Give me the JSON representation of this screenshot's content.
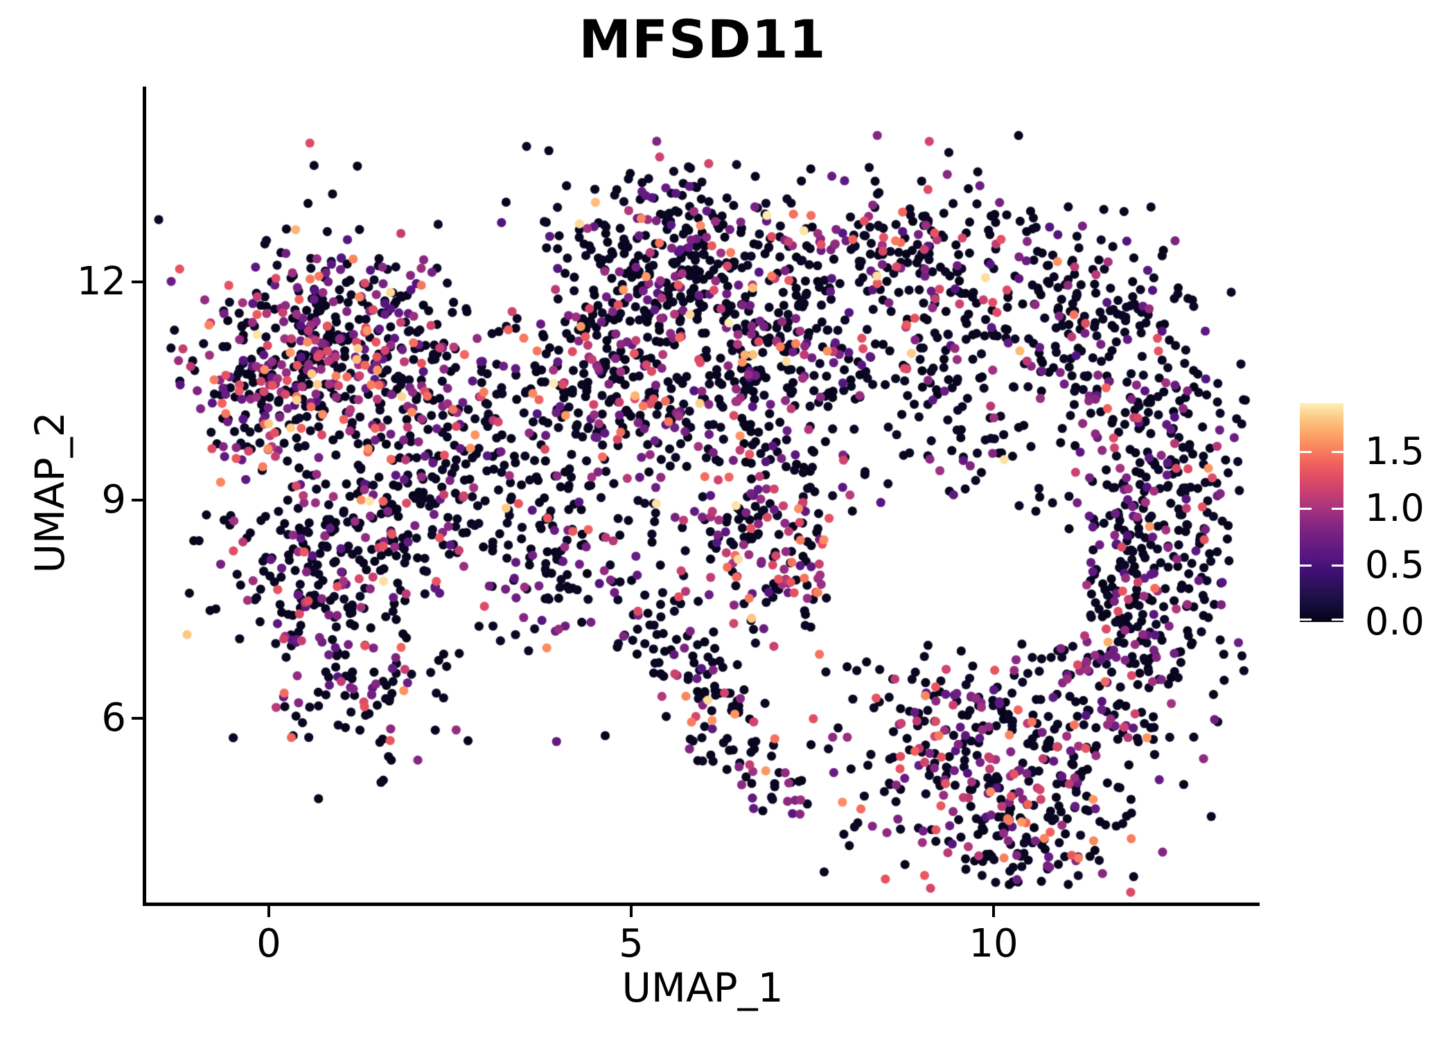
{
  "figure": {
    "title": "MFSD11"
  },
  "chart_data": {
    "type": "scatter",
    "title": "MFSD11",
    "xlabel": "UMAP_1",
    "ylabel": "UMAP_2",
    "xlim": [
      -1.7,
      13.67
    ],
    "ylim": [
      3.45,
      14.78
    ],
    "grid": false,
    "x_ticks": [
      {
        "value": 0,
        "label": "0"
      },
      {
        "value": 5,
        "label": "5"
      },
      {
        "value": 10,
        "label": "10"
      }
    ],
    "y_ticks": [
      {
        "value": 6,
        "label": "6"
      },
      {
        "value": 9,
        "label": "9"
      },
      {
        "value": 12,
        "label": "12"
      }
    ],
    "colorbar": {
      "position": "right",
      "vmin": 0.0,
      "vmax": 1.93,
      "ticks": [
        {
          "value": 0.0,
          "label": "0.0"
        },
        {
          "value": 0.5,
          "label": "0.5"
        },
        {
          "value": 1.0,
          "label": "1.0"
        },
        {
          "value": 1.5,
          "label": "1.5"
        }
      ]
    },
    "colormap": {
      "name": "magma",
      "stops": [
        [
          0.0,
          "#050417"
        ],
        [
          0.08,
          "#140e3a"
        ],
        [
          0.16,
          "#2c1158"
        ],
        [
          0.24,
          "#431078"
        ],
        [
          0.3,
          "#571680"
        ],
        [
          0.38,
          "#6f1f81"
        ],
        [
          0.46,
          "#8b2981"
        ],
        [
          0.52,
          "#a53480"
        ],
        [
          0.56,
          "#b93a76"
        ],
        [
          0.62,
          "#d2456c"
        ],
        [
          0.68,
          "#e65261"
        ],
        [
          0.74,
          "#f4685d"
        ],
        [
          0.8,
          "#fa8660"
        ],
        [
          0.86,
          "#fda568"
        ],
        [
          0.92,
          "#fdc27b"
        ],
        [
          1.0,
          "#fdf0b8"
        ]
      ]
    },
    "points": {
      "n": 3840,
      "radius_px": 6.6,
      "seed": 7,
      "expression_levels": {
        "zero": [
          0.0,
          0.035
        ],
        "low": [
          0.28,
          0.52
        ],
        "mid": [
          0.54,
          0.7
        ],
        "high": [
          0.72,
          0.84
        ],
        "max": [
          0.88,
          1.0
        ]
      },
      "category_mixes": {
        "left": [
          0.56,
          0.28,
          0.11,
          0.04,
          0.01
        ],
        "default": [
          0.7,
          0.19,
          0.07,
          0.03,
          0.01
        ],
        "pink": [
          0.55,
          0.2,
          0.17,
          0.06,
          0.02
        ],
        "right": [
          0.745,
          0.185,
          0.05,
          0.015,
          0.005
        ],
        "br": [
          0.63,
          0.23,
          0.1,
          0.03,
          0.01
        ],
        "sparse": [
          0.8,
          0.14,
          0.04,
          0.015,
          0.005
        ]
      },
      "clusters": [
        {
          "name": "left-main",
          "cx": 0.88,
          "cy": 11.1,
          "sx": 0.82,
          "sy": 0.82,
          "n": 420,
          "mix": "left"
        },
        {
          "name": "left-west-edge",
          "cx": -0.18,
          "cy": 10.5,
          "sx": 0.45,
          "sy": 0.7,
          "n": 110,
          "mix": "left"
        },
        {
          "name": "left-lower-lobe",
          "cx": 0.75,
          "cy": 7.95,
          "sx": 0.78,
          "sy": 0.72,
          "n": 215,
          "mix": "default"
        },
        {
          "name": "left-bottom-tail",
          "cx": 1.2,
          "cy": 6.4,
          "sx": 0.75,
          "sy": 0.5,
          "n": 85,
          "mix": "default"
        },
        {
          "name": "bridge-left-mid",
          "cx": 2.41,
          "cy": 10.1,
          "sx": 0.58,
          "sy": 0.72,
          "n": 150,
          "mix": "left"
        },
        {
          "name": "mid-top",
          "cx": 5.61,
          "cy": 12.3,
          "sx": 1.0,
          "sy": 0.62,
          "n": 300,
          "mix": "default"
        },
        {
          "name": "mid-core",
          "cx": 4.51,
          "cy": 10.5,
          "sx": 0.82,
          "sy": 0.76,
          "n": 250,
          "mix": "default"
        },
        {
          "name": "mid-right-upper",
          "cx": 6.81,
          "cy": 10.9,
          "sx": 0.82,
          "sy": 0.72,
          "n": 220,
          "mix": "default"
        },
        {
          "name": "mid-right-pink",
          "cx": 7.09,
          "cy": 8.6,
          "sx": 0.76,
          "sy": 0.72,
          "n": 230,
          "mix": "pink"
        },
        {
          "name": "right-top",
          "cx": 8.62,
          "cy": 12.45,
          "sx": 0.82,
          "sy": 0.52,
          "n": 170,
          "mix": "default"
        },
        {
          "name": "right-bridge",
          "cx": 9.58,
          "cy": 10.5,
          "sx": 0.58,
          "sy": 0.82,
          "n": 80,
          "mix": "sparse"
        },
        {
          "name": "crescent-upper",
          "cx": 11.25,
          "cy": 11.4,
          "sx": 0.72,
          "sy": 0.67,
          "n": 190,
          "mix": "right"
        },
        {
          "name": "crescent-mid",
          "cx": 12.21,
          "cy": 9.3,
          "sx": 0.62,
          "sy": 0.9,
          "n": 260,
          "mix": "right"
        },
        {
          "name": "crescent-lower",
          "cx": 12.07,
          "cy": 7.26,
          "sx": 0.67,
          "sy": 0.76,
          "n": 230,
          "mix": "right"
        },
        {
          "name": "bottom-right-main",
          "cx": 9.87,
          "cy": 5.64,
          "sx": 1.05,
          "sy": 0.76,
          "n": 330,
          "mix": "br"
        },
        {
          "name": "bottom-right-tip",
          "cx": 10.54,
          "cy": 4.4,
          "sx": 0.67,
          "sy": 0.43,
          "n": 110,
          "mix": "br"
        },
        {
          "name": "diagonal-chain",
          "type": "segment",
          "cx": 5.18,
          "cy": 7.4,
          "x2": 7.0,
          "y2": 5.02,
          "s": 0.33,
          "n": 130,
          "mix": "default"
        },
        {
          "name": "mid-lower-links",
          "cx": 3.94,
          "cy": 8.16,
          "sx": 0.62,
          "sy": 0.57,
          "n": 110,
          "mix": "default"
        },
        {
          "name": "left-mid-gap",
          "cx": 1.9,
          "cy": 8.8,
          "sx": 0.65,
          "sy": 0.55,
          "n": 70,
          "mix": "default"
        },
        {
          "name": "noise-mid",
          "cx": 5.3,
          "cy": 10.3,
          "sx": 2.3,
          "sy": 1.5,
          "n": 110,
          "mix": "sparse"
        },
        {
          "name": "noise-right-top",
          "cx": 9.0,
          "cy": 11.6,
          "sx": 1.1,
          "sy": 0.9,
          "n": 70,
          "mix": "sparse"
        }
      ]
    }
  }
}
